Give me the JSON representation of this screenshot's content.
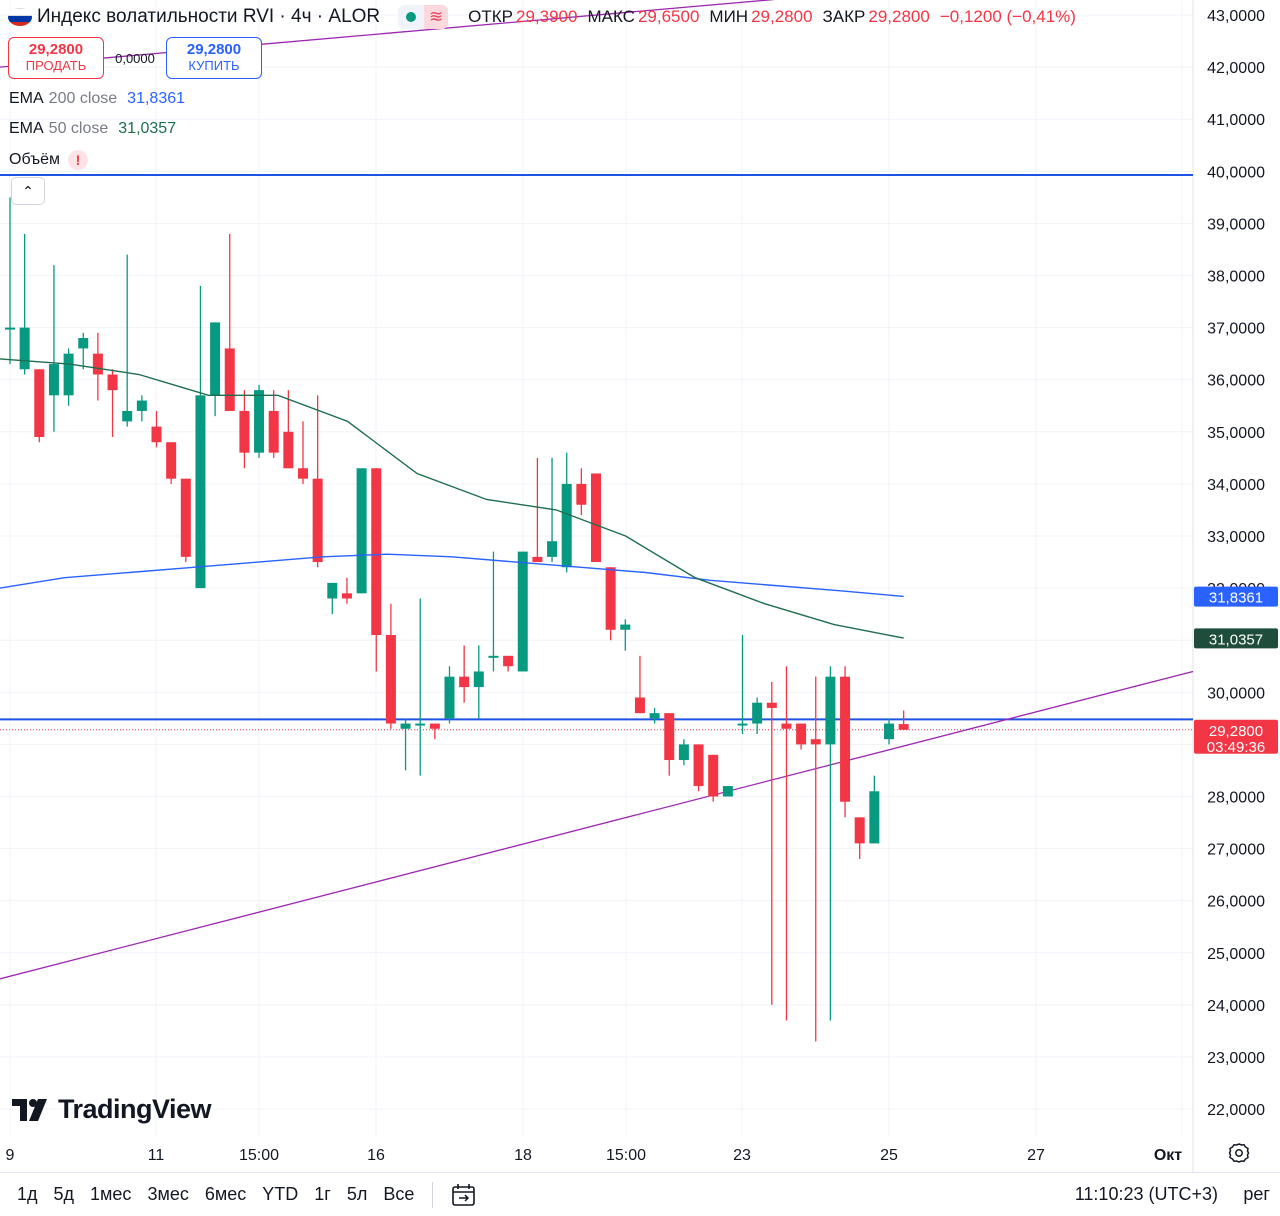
{
  "header": {
    "title": "Индекс волатильности RVI · 4ч · ALOR",
    "flag_icon": "russia-flag-icon",
    "status_color": "#089981",
    "ohlc": [
      {
        "label": "ОТКР",
        "value": "29,3900"
      },
      {
        "label": "МАКС",
        "value": "29,6500"
      },
      {
        "label": "МИН",
        "value": "29,2800"
      },
      {
        "label": "ЗАКР",
        "value": "29,2800"
      }
    ],
    "change": "−0,1200 (−0,41%)"
  },
  "trade": {
    "sell_price": "29,2800",
    "sell_label": "ПРОДАТЬ",
    "spread": "0,0000",
    "buy_price": "29,2800",
    "buy_label": "КУПИТЬ"
  },
  "indicators": {
    "ema200": {
      "name": "EMA",
      "params": "200 close",
      "value": "31,8361",
      "color": "#2962ff"
    },
    "ema50": {
      "name": "EMA",
      "params": "50 close",
      "value": "31,0357",
      "color": "#1e6e4e"
    },
    "volume": {
      "name": "Объём",
      "warning": "!"
    }
  },
  "price_axis": {
    "ticks": [
      "43,0000",
      "42,0000",
      "41,0000",
      "40,0000",
      "39,0000",
      "38,0000",
      "37,0000",
      "36,0000",
      "35,0000",
      "34,0000",
      "33,0000",
      "32,0000",
      "30,0000",
      "28,0000",
      "27,0000",
      "26,0000",
      "25,0000",
      "24,0000",
      "23,0000",
      "22,0000"
    ],
    "last_price": "29,2800",
    "countdown": "03:49:36"
  },
  "time_axis": {
    "labels": [
      "9",
      "11",
      "15:00",
      "16",
      "18",
      "15:00",
      "23",
      "25",
      "27",
      "Окт"
    ]
  },
  "bottom_bar": {
    "ranges": [
      "1д",
      "5д",
      "1мес",
      "3мес",
      "6мес",
      "YTD",
      "1г",
      "5л",
      "Все"
    ],
    "clock": "11:10:23 (UTC+3)",
    "scale_mode": "рег"
  },
  "logo_text": "TradingView",
  "colors": {
    "up": "#089981",
    "down": "#f23645",
    "ema200": "#2962ff",
    "ema50": "#1e6e4e",
    "trendline": "#9c27b0",
    "hline": "#1e53e5",
    "grid": "#f0f3fa"
  },
  "chart_data": {
    "type": "candlestick",
    "ylim": [
      21.6,
      43.3
    ],
    "candles": [
      {
        "o": 37.0,
        "h": 39.5,
        "l": 36.3,
        "c": 37.0
      },
      {
        "o": 36.2,
        "h": 38.8,
        "l": 36.1,
        "c": 37.0
      },
      {
        "o": 36.2,
        "h": 36.2,
        "l": 34.8,
        "c": 34.9
      },
      {
        "o": 35.7,
        "h": 38.2,
        "l": 35.0,
        "c": 36.3
      },
      {
        "o": 35.7,
        "h": 36.6,
        "l": 35.5,
        "c": 36.5
      },
      {
        "o": 36.6,
        "h": 36.9,
        "l": 36.2,
        "c": 36.8
      },
      {
        "o": 36.5,
        "h": 36.9,
        "l": 35.6,
        "c": 36.1
      },
      {
        "o": 36.1,
        "h": 36.2,
        "l": 34.9,
        "c": 35.8
      },
      {
        "o": 35.2,
        "h": 38.4,
        "l": 35.1,
        "c": 35.4
      },
      {
        "o": 35.4,
        "h": 35.7,
        "l": 35.2,
        "c": 35.6
      },
      {
        "o": 35.1,
        "h": 35.4,
        "l": 34.7,
        "c": 34.8
      },
      {
        "o": 34.8,
        "h": 34.8,
        "l": 34.0,
        "c": 34.1
      },
      {
        "o": 34.1,
        "h": 34.1,
        "l": 32.5,
        "c": 32.6
      },
      {
        "o": 32.0,
        "h": 37.8,
        "l": 32.0,
        "c": 35.7
      },
      {
        "o": 35.7,
        "h": 37.1,
        "l": 35.3,
        "c": 37.1
      },
      {
        "o": 36.6,
        "h": 38.8,
        "l": 35.4,
        "c": 35.4
      },
      {
        "o": 35.4,
        "h": 35.8,
        "l": 34.3,
        "c": 34.6
      },
      {
        "o": 34.6,
        "h": 35.9,
        "l": 34.5,
        "c": 35.8
      },
      {
        "o": 35.4,
        "h": 35.8,
        "l": 34.5,
        "c": 34.6
      },
      {
        "o": 35.0,
        "h": 35.8,
        "l": 34.3,
        "c": 34.3
      },
      {
        "o": 34.3,
        "h": 35.2,
        "l": 34.0,
        "c": 34.1
      },
      {
        "o": 34.1,
        "h": 35.7,
        "l": 32.4,
        "c": 32.5
      },
      {
        "o": 31.8,
        "h": 32.1,
        "l": 31.5,
        "c": 32.1
      },
      {
        "o": 31.9,
        "h": 32.2,
        "l": 31.7,
        "c": 31.8
      },
      {
        "o": 31.9,
        "h": 34.3,
        "l": 31.9,
        "c": 34.3
      },
      {
        "o": 34.3,
        "h": 34.3,
        "l": 30.4,
        "c": 31.1
      },
      {
        "o": 31.1,
        "h": 31.7,
        "l": 29.3,
        "c": 29.4
      },
      {
        "o": 29.3,
        "h": 29.5,
        "l": 28.5,
        "c": 29.4
      },
      {
        "o": 29.4,
        "h": 31.8,
        "l": 28.4,
        "c": 29.4
      },
      {
        "o": 29.4,
        "h": 29.4,
        "l": 29.1,
        "c": 29.3
      },
      {
        "o": 29.5,
        "h": 30.5,
        "l": 29.4,
        "c": 30.3
      },
      {
        "o": 30.3,
        "h": 30.9,
        "l": 29.8,
        "c": 30.1
      },
      {
        "o": 30.1,
        "h": 30.9,
        "l": 29.5,
        "c": 30.4
      },
      {
        "o": 30.7,
        "h": 32.7,
        "l": 30.4,
        "c": 30.7
      },
      {
        "o": 30.7,
        "h": 30.6,
        "l": 30.4,
        "c": 30.5
      },
      {
        "o": 30.4,
        "h": 32.7,
        "l": 30.4,
        "c": 32.7
      },
      {
        "o": 32.6,
        "h": 34.5,
        "l": 32.5,
        "c": 32.5
      },
      {
        "o": 32.6,
        "h": 34.5,
        "l": 32.5,
        "c": 32.9
      },
      {
        "o": 32.4,
        "h": 34.6,
        "l": 32.3,
        "c": 34.0
      },
      {
        "o": 34.0,
        "h": 34.3,
        "l": 33.4,
        "c": 33.6
      },
      {
        "o": 34.2,
        "h": 34.2,
        "l": 32.5,
        "c": 32.5
      },
      {
        "o": 32.4,
        "h": 32.4,
        "l": 31.0,
        "c": 31.2
      },
      {
        "o": 31.2,
        "h": 31.4,
        "l": 30.8,
        "c": 31.3
      },
      {
        "o": 29.9,
        "h": 30.7,
        "l": 29.6,
        "c": 29.6
      },
      {
        "o": 29.5,
        "h": 29.7,
        "l": 29.4,
        "c": 29.6
      },
      {
        "o": 29.6,
        "h": 29.6,
        "l": 28.4,
        "c": 28.7
      },
      {
        "o": 28.7,
        "h": 29.1,
        "l": 28.6,
        "c": 29.0
      },
      {
        "o": 29.0,
        "h": 29.0,
        "l": 28.1,
        "c": 28.2
      },
      {
        "o": 28.8,
        "h": 28.8,
        "l": 27.9,
        "c": 28.0
      },
      {
        "o": 28.0,
        "h": 28.2,
        "l": 28.0,
        "c": 28.2
      },
      {
        "o": 29.4,
        "h": 31.1,
        "l": 29.2,
        "c": 29.4
      },
      {
        "o": 29.4,
        "h": 29.9,
        "l": 29.2,
        "c": 29.8
      },
      {
        "o": 29.8,
        "h": 30.2,
        "l": 24.0,
        "c": 29.7
      },
      {
        "o": 29.4,
        "h": 30.5,
        "l": 23.7,
        "c": 29.3
      },
      {
        "o": 29.4,
        "h": 29.4,
        "l": 28.9,
        "c": 29.0
      },
      {
        "o": 29.1,
        "h": 30.3,
        "l": 23.3,
        "c": 29.0
      },
      {
        "o": 29.0,
        "h": 30.5,
        "l": 23.7,
        "c": 30.3
      },
      {
        "o": 30.3,
        "h": 30.5,
        "l": 27.6,
        "c": 27.9
      },
      {
        "o": 27.6,
        "h": 27.6,
        "l": 26.8,
        "c": 27.1
      },
      {
        "o": 27.1,
        "h": 28.4,
        "l": 27.1,
        "c": 28.1
      },
      {
        "o": 29.1,
        "h": 29.5,
        "l": 29.0,
        "c": 29.4
      },
      {
        "o": 29.39,
        "h": 29.65,
        "l": 29.28,
        "c": 29.28
      }
    ],
    "ema200_values": [
      32.0,
      32.2,
      32.3,
      32.4,
      32.5,
      32.6,
      32.65,
      32.6,
      32.5,
      32.4,
      32.3,
      32.15,
      32.05,
      31.95,
      31.84
    ],
    "ema50_values": [
      36.4,
      36.3,
      36.1,
      35.7,
      35.7,
      35.2,
      34.2,
      33.7,
      33.5,
      33.0,
      32.2,
      31.7,
      31.3,
      31.04
    ],
    "horizontal_levels": [
      39.93,
      29.48
    ],
    "trendlines": [
      {
        "from": [
          0,
          24.5
        ],
        "to": 30.4
      },
      {
        "from": [
          0,
          42.0
        ],
        "to": 44.0
      }
    ]
  }
}
